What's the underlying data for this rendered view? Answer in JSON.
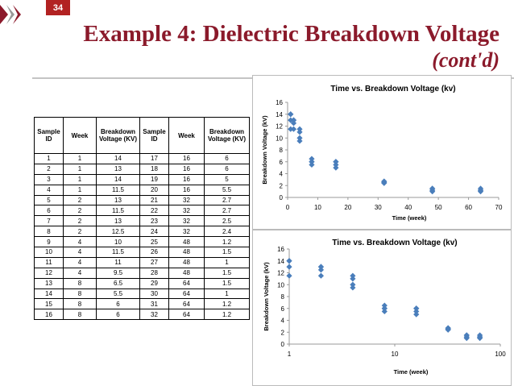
{
  "slide_number": "34",
  "title": "Example 4: Dielectric Breakdown Voltage",
  "subtitle": "(cont'd)",
  "table": {
    "header": [
      "Sample ID",
      "Week",
      "Breakdown Voltage (KV)",
      "Sample ID",
      "Week",
      "Breakdown Voltage (KV)"
    ],
    "rows": [
      [
        1,
        1,
        14,
        17,
        16,
        6
      ],
      [
        2,
        1,
        13,
        18,
        16,
        6
      ],
      [
        3,
        1,
        14,
        19,
        16,
        5
      ],
      [
        4,
        1,
        11.5,
        20,
        16,
        5.5
      ],
      [
        5,
        2,
        13,
        21,
        32,
        2.7
      ],
      [
        6,
        2,
        11.5,
        22,
        32,
        2.7
      ],
      [
        7,
        2,
        13,
        23,
        32,
        2.5
      ],
      [
        8,
        2,
        12.5,
        24,
        32,
        2.4
      ],
      [
        9,
        4,
        10,
        25,
        48,
        1.2
      ],
      [
        10,
        4,
        11.5,
        26,
        48,
        1.5
      ],
      [
        11,
        4,
        11,
        27,
        48,
        1
      ],
      [
        12,
        4,
        9.5,
        28,
        48,
        1.5
      ],
      [
        13,
        8,
        6.5,
        29,
        64,
        1.5
      ],
      [
        14,
        8,
        5.5,
        30,
        64,
        1
      ],
      [
        15,
        8,
        6,
        31,
        64,
        1.2
      ],
      [
        16,
        8,
        6,
        32,
        64,
        1.2
      ]
    ]
  },
  "chart_data": [
    {
      "type": "scatter",
      "title": "Time vs. Breakdown Voltage (kv)",
      "x_label": "Time (week)",
      "y_label": "Breakdown Voltage (kV)",
      "x": [
        1,
        1,
        1,
        1,
        2,
        2,
        2,
        2,
        4,
        4,
        4,
        4,
        8,
        8,
        8,
        8,
        16,
        16,
        16,
        16,
        32,
        32,
        32,
        32,
        48,
        48,
        48,
        48,
        64,
        64,
        64,
        64
      ],
      "values": [
        14,
        13,
        14,
        11.5,
        13,
        11.5,
        13,
        12.5,
        10,
        11.5,
        11,
        9.5,
        6.5,
        5.5,
        6,
        6,
        6,
        6,
        5,
        5.5,
        2.7,
        2.7,
        2.5,
        2.4,
        1.2,
        1.5,
        1,
        1.5,
        1.5,
        1,
        1.2,
        1.2
      ],
      "color": "#4a7ebb",
      "xscale": "linear",
      "xlim": [
        0,
        70
      ],
      "xticks": [
        0,
        10,
        20,
        30,
        40,
        50,
        60,
        70
      ],
      "ylim": [
        0,
        16
      ],
      "yticks": [
        0,
        2,
        4,
        6,
        8,
        10,
        12,
        14,
        16
      ]
    },
    {
      "type": "scatter",
      "title": "Time vs. Breakdown Voltage (kv)",
      "x_label": "Time (week)",
      "y_label": "Breakdown Voltage (kV)",
      "x": [
        1,
        1,
        1,
        1,
        2,
        2,
        2,
        2,
        4,
        4,
        4,
        4,
        8,
        8,
        8,
        8,
        16,
        16,
        16,
        16,
        32,
        32,
        32,
        32,
        48,
        48,
        48,
        48,
        64,
        64,
        64,
        64
      ],
      "values": [
        14,
        13,
        14,
        11.5,
        13,
        11.5,
        13,
        12.5,
        10,
        11.5,
        11,
        9.5,
        6.5,
        5.5,
        6,
        6,
        6,
        6,
        5,
        5.5,
        2.7,
        2.7,
        2.5,
        2.4,
        1.2,
        1.5,
        1,
        1.5,
        1.5,
        1,
        1.2,
        1.2
      ],
      "color": "#4a7ebb",
      "xscale": "log",
      "xlim": [
        1,
        100
      ],
      "xticks": [
        1,
        10,
        100
      ],
      "ylim": [
        0,
        16
      ],
      "yticks": [
        0,
        2,
        4,
        6,
        8,
        10,
        12,
        14,
        16
      ]
    }
  ]
}
